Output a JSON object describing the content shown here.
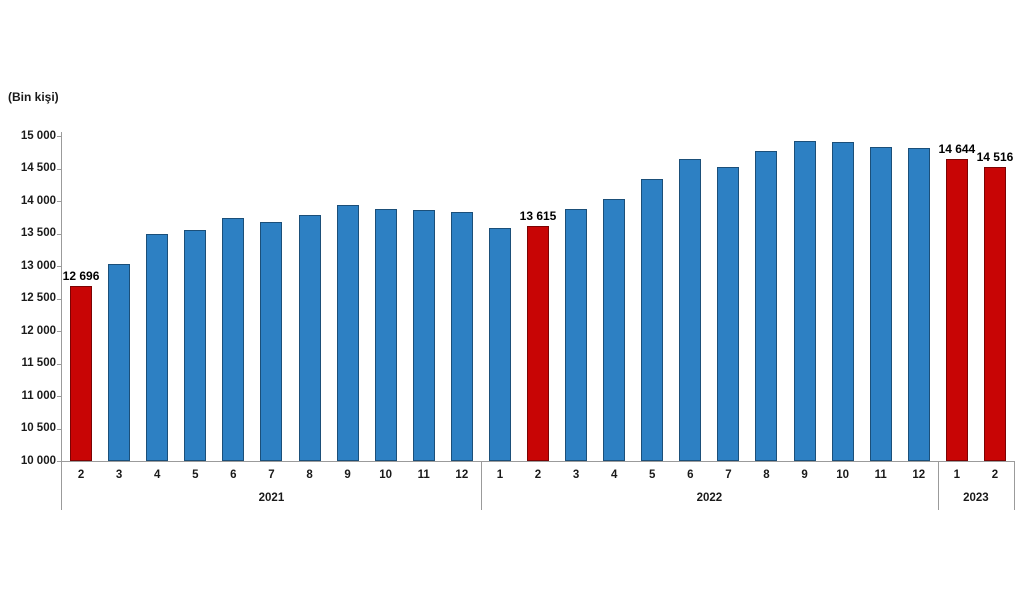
{
  "chart_data": {
    "type": "bar",
    "title": "",
    "xlabel": "",
    "ylabel": "(Bin kişi)",
    "ylim": [
      10000,
      15000
    ],
    "ytick_step": 500,
    "yticks": [
      {
        "value": 15000,
        "label": "15 000"
      },
      {
        "value": 14500,
        "label": "14 500"
      },
      {
        "value": 14000,
        "label": "14 000"
      },
      {
        "value": 13500,
        "label": "13 500"
      },
      {
        "value": 13000,
        "label": "13 000"
      },
      {
        "value": 12500,
        "label": "12 500"
      },
      {
        "value": 12000,
        "label": "12 000"
      },
      {
        "value": 11500,
        "label": "11 500"
      },
      {
        "value": 11000,
        "label": "11 000"
      },
      {
        "value": 10500,
        "label": "10 500"
      },
      {
        "value": 10000,
        "label": "10 000"
      }
    ],
    "grid": false,
    "legend": null,
    "colors": {
      "bar_default": "#2d80c3",
      "bar_highlight": "#c80505",
      "axis": "#9b9b9b",
      "text": "#1a1a1a"
    },
    "groups": [
      {
        "year": "2021",
        "count": 11
      },
      {
        "year": "2022",
        "count": 12
      },
      {
        "year": "2023",
        "count": 2
      }
    ],
    "points": [
      {
        "year": "2021",
        "month": "2",
        "value": 12696,
        "highlight": true,
        "label": "12 696"
      },
      {
        "year": "2021",
        "month": "3",
        "value": 13030,
        "highlight": false,
        "label": ""
      },
      {
        "year": "2021",
        "month": "4",
        "value": 13490,
        "highlight": false,
        "label": ""
      },
      {
        "year": "2021",
        "month": "5",
        "value": 13550,
        "highlight": false,
        "label": ""
      },
      {
        "year": "2021",
        "month": "6",
        "value": 13740,
        "highlight": false,
        "label": ""
      },
      {
        "year": "2021",
        "month": "7",
        "value": 13670,
        "highlight": false,
        "label": ""
      },
      {
        "year": "2021",
        "month": "8",
        "value": 13785,
        "highlight": false,
        "label": ""
      },
      {
        "year": "2021",
        "month": "9",
        "value": 13935,
        "highlight": false,
        "label": ""
      },
      {
        "year": "2021",
        "month": "10",
        "value": 13870,
        "highlight": false,
        "label": ""
      },
      {
        "year": "2021",
        "month": "11",
        "value": 13860,
        "highlight": false,
        "label": ""
      },
      {
        "year": "2021",
        "month": "12",
        "value": 13825,
        "highlight": false,
        "label": ""
      },
      {
        "year": "2022",
        "month": "1",
        "value": 13580,
        "highlight": false,
        "label": ""
      },
      {
        "year": "2022",
        "month": "2",
        "value": 13615,
        "highlight": true,
        "label": "13 615"
      },
      {
        "year": "2022",
        "month": "3",
        "value": 13875,
        "highlight": false,
        "label": ""
      },
      {
        "year": "2022",
        "month": "4",
        "value": 14030,
        "highlight": false,
        "label": ""
      },
      {
        "year": "2022",
        "month": "5",
        "value": 14340,
        "highlight": false,
        "label": ""
      },
      {
        "year": "2022",
        "month": "6",
        "value": 14650,
        "highlight": false,
        "label": ""
      },
      {
        "year": "2022",
        "month": "7",
        "value": 14530,
        "highlight": false,
        "label": ""
      },
      {
        "year": "2022",
        "month": "8",
        "value": 14775,
        "highlight": false,
        "label": ""
      },
      {
        "year": "2022",
        "month": "9",
        "value": 14930,
        "highlight": false,
        "label": ""
      },
      {
        "year": "2022",
        "month": "10",
        "value": 14905,
        "highlight": false,
        "label": ""
      },
      {
        "year": "2022",
        "month": "11",
        "value": 14830,
        "highlight": false,
        "label": ""
      },
      {
        "year": "2022",
        "month": "12",
        "value": 14815,
        "highlight": false,
        "label": ""
      },
      {
        "year": "2023",
        "month": "1",
        "value": 14644,
        "highlight": true,
        "label": "14 644"
      },
      {
        "year": "2023",
        "month": "2",
        "value": 14516,
        "highlight": true,
        "label": "14 516"
      }
    ]
  }
}
